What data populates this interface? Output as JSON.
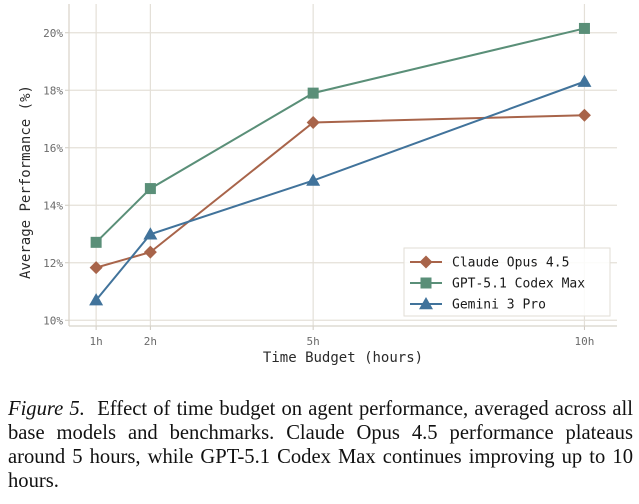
{
  "chart_data": {
    "type": "line",
    "title": "",
    "xlabel": "Time Budget (hours)",
    "ylabel": "Average Performance (%)",
    "x": [
      1,
      2,
      5,
      10
    ],
    "x_tick_labels": [
      "1h",
      "2h",
      "5h",
      "10h"
    ],
    "xlim": [
      0.5,
      10.6
    ],
    "ylim": [
      9.8,
      21.0
    ],
    "y_ticks": [
      10,
      12,
      14,
      16,
      18,
      20
    ],
    "y_tick_labels": [
      "10%",
      "12%",
      "14%",
      "16%",
      "18%",
      "20%"
    ],
    "grid": true,
    "legend_position": "lower-right",
    "series": [
      {
        "name": "Claude Opus 4.5",
        "marker": "diamond",
        "color": "#a8644a",
        "values": [
          11.83,
          12.37,
          16.88,
          17.13
        ]
      },
      {
        "name": "GPT-5.1 Codex Max",
        "marker": "square",
        "color": "#5a8f78",
        "values": [
          12.71,
          14.58,
          17.9,
          20.15
        ]
      },
      {
        "name": "Gemini 3 Pro",
        "marker": "triangle",
        "color": "#41739b",
        "values": [
          10.7,
          12.99,
          14.86,
          18.3
        ]
      }
    ]
  },
  "caption": {
    "figure_label": "Figure 5.",
    "text": "Effect of time budget on agent performance, averaged across all base models and benchmarks. Claude Opus 4.5 performance plateaus around 5 hours, while GPT-5.1 Codex Max continues improving up to 10 hours."
  }
}
